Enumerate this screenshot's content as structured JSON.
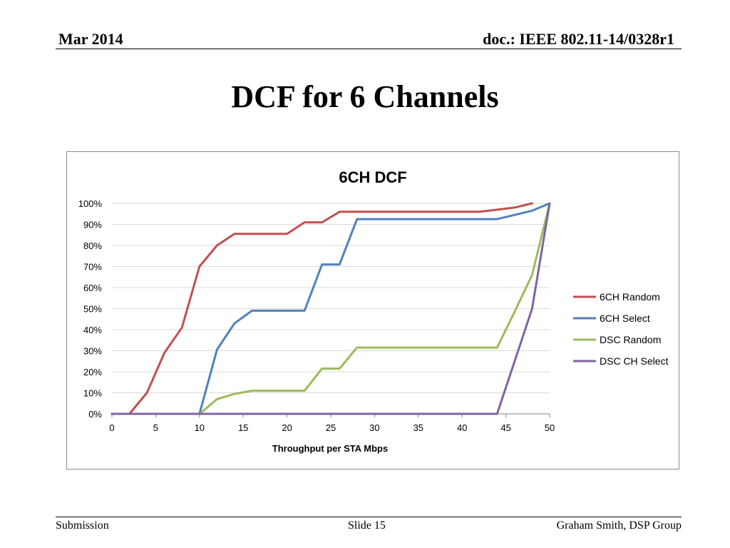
{
  "header": {
    "date": "Mar 2014",
    "doc": "doc.: IEEE 802.11-14/0328r1"
  },
  "slide_title": "DCF for 6 Channels",
  "footer": {
    "left": "Submission",
    "center": "Slide 15",
    "right": "Graham Smith, DSP Group"
  },
  "chart_data": {
    "type": "line",
    "title": "6CH DCF",
    "xlabel": "Throughput  per STA Mbps",
    "ylabel": "",
    "xlim": [
      0,
      50
    ],
    "ylim": [
      0,
      100
    ],
    "x_ticks": [
      0,
      5,
      10,
      15,
      20,
      25,
      30,
      35,
      40,
      45,
      50
    ],
    "y_ticks": [
      0,
      10,
      20,
      30,
      40,
      50,
      60,
      70,
      80,
      90,
      100
    ],
    "y_tick_labels": [
      "0%",
      "10%",
      "20%",
      "30%",
      "40%",
      "50%",
      "60%",
      "70%",
      "80%",
      "90%",
      "100%"
    ],
    "grid": "horizontal",
    "legend_position": "right",
    "series": [
      {
        "name": "6CH Random",
        "color": "#c0504d",
        "x": [
          0,
          2,
          4,
          6,
          8,
          10,
          12,
          14,
          16,
          18,
          20,
          22,
          24,
          26,
          28,
          30,
          32,
          34,
          36,
          38,
          40,
          42,
          44,
          46,
          48
        ],
        "y": [
          0,
          0,
          10,
          29,
          41,
          70,
          80,
          85.5,
          85.5,
          85.5,
          85.5,
          91,
          91,
          96,
          96,
          96,
          96,
          96,
          96,
          96,
          96,
          96,
          97,
          98,
          100
        ]
      },
      {
        "name": "6CH Select",
        "color": "#4f81bd",
        "x": [
          0,
          2,
          4,
          6,
          8,
          10,
          12,
          14,
          16,
          18,
          20,
          22,
          24,
          26,
          28,
          30,
          32,
          34,
          36,
          38,
          40,
          42,
          44,
          46,
          48,
          50
        ],
        "y": [
          0,
          0,
          0,
          0,
          0,
          0,
          30.5,
          43,
          49,
          49,
          49,
          49,
          71,
          71,
          92.5,
          92.5,
          92.5,
          92.5,
          92.5,
          92.5,
          92.5,
          92.5,
          92.5,
          94.5,
          96.5,
          100
        ]
      },
      {
        "name": "DSC Random",
        "color": "#9bbb59",
        "x": [
          0,
          2,
          4,
          6,
          8,
          10,
          12,
          14,
          16,
          18,
          20,
          22,
          24,
          26,
          28,
          30,
          32,
          34,
          36,
          38,
          40,
          42,
          44,
          46,
          48,
          50
        ],
        "y": [
          0,
          0,
          0,
          0,
          0,
          0,
          7,
          9.5,
          11,
          11,
          11,
          11,
          21.5,
          21.5,
          31.5,
          31.5,
          31.5,
          31.5,
          31.5,
          31.5,
          31.5,
          31.5,
          31.5,
          48.5,
          66,
          100
        ]
      },
      {
        "name": "DSC CH Select",
        "color": "#8064a2",
        "x": [
          0,
          2,
          4,
          6,
          8,
          10,
          12,
          14,
          16,
          18,
          20,
          22,
          24,
          26,
          28,
          30,
          32,
          34,
          36,
          38,
          40,
          42,
          44,
          46,
          48,
          50
        ],
        "y": [
          0,
          0,
          0,
          0,
          0,
          0,
          0,
          0,
          0,
          0,
          0,
          0,
          0,
          0,
          0,
          0,
          0,
          0,
          0,
          0,
          0,
          0,
          0,
          25,
          50,
          100
        ]
      }
    ]
  }
}
